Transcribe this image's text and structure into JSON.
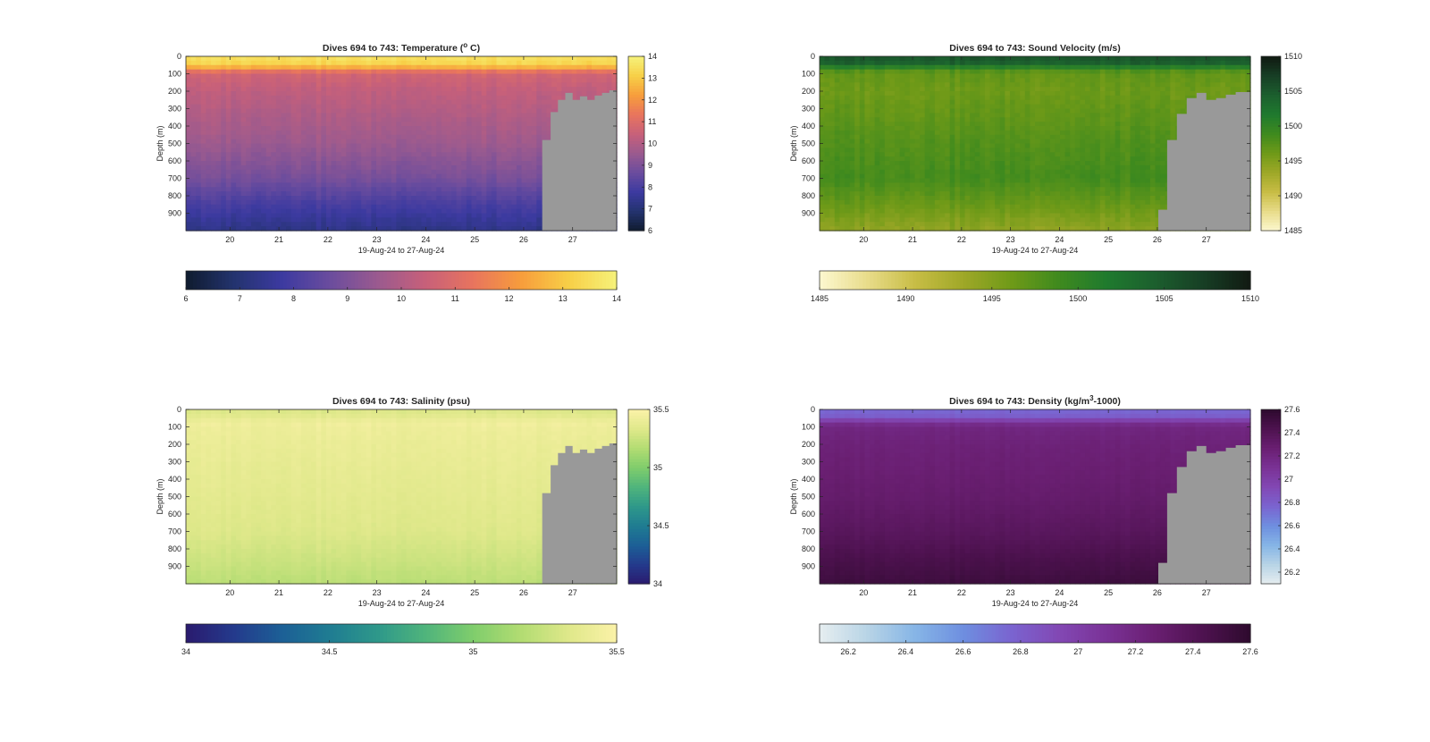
{
  "figure": {
    "background": "#ffffff",
    "bathymetry_color": "#999999"
  },
  "chart_data": [
    {
      "type": "heatmap",
      "title": "Dives 694 to 743: Temperature (° C)",
      "title_parts": {
        "prefix": "Dives 694 to 743: Temperature (",
        "sup": "o",
        "suffix": " C)"
      },
      "xlabel": "19-Aug-24 to 27-Aug-24",
      "ylabel": "Depth (m)",
      "x_ticks": [
        "20",
        "21",
        "22",
        "23",
        "24",
        "25",
        "26",
        "27"
      ],
      "x_range": [
        19.1,
        27.9
      ],
      "y_ticks": [
        "0",
        "100",
        "200",
        "300",
        "400",
        "500",
        "600",
        "700",
        "800",
        "900"
      ],
      "y_range": [
        0,
        1000
      ],
      "y_reversed": true,
      "colorbar_ticks": [
        "6",
        "7",
        "8",
        "9",
        "10",
        "11",
        "12",
        "13",
        "14"
      ],
      "clim": [
        6,
        14
      ],
      "colormap": [
        "#0f1b2e",
        "#23336e",
        "#3c3aa0",
        "#6a4c9e",
        "#9a5a8f",
        "#c7607a",
        "#e8745e",
        "#f79d3c",
        "#f7cf47",
        "#f6f27a"
      ],
      "profile": {
        "depth": [
          0,
          40,
          60,
          80,
          100,
          200,
          500,
          700,
          850,
          1000
        ],
        "value": [
          13.6,
          13.3,
          12.7,
          11.6,
          10.7,
          10.3,
          9.6,
          8.9,
          8.0,
          7.3
        ],
        "variation": 0.35
      },
      "bottom_depth": [
        {
          "day": 26.2,
          "depth": 1000
        },
        {
          "day": 26.38,
          "depth": 480
        },
        {
          "day": 26.55,
          "depth": 320
        },
        {
          "day": 26.7,
          "depth": 250
        },
        {
          "day": 26.85,
          "depth": 210
        },
        {
          "day": 27.0,
          "depth": 250
        },
        {
          "day": 27.15,
          "depth": 230
        },
        {
          "day": 27.3,
          "depth": 250
        },
        {
          "day": 27.45,
          "depth": 225
        },
        {
          "day": 27.6,
          "depth": 210
        },
        {
          "day": 27.75,
          "depth": 195
        },
        {
          "day": 27.9,
          "depth": 190
        }
      ]
    },
    {
      "type": "heatmap",
      "title": "Dives 694 to 743: Sound Velocity (m/s)",
      "title_parts": {
        "prefix": "Dives 694 to 743: Sound Velocity (m/s)",
        "sup": "",
        "suffix": ""
      },
      "xlabel": "19-Aug-24 to 27-Aug-24",
      "ylabel": "Depth (m)",
      "x_ticks": [
        "20",
        "21",
        "22",
        "23",
        "24",
        "25",
        "26",
        "27"
      ],
      "x_range": [
        19.1,
        27.9
      ],
      "y_ticks": [
        "0",
        "100",
        "200",
        "300",
        "400",
        "500",
        "600",
        "700",
        "800",
        "900"
      ],
      "y_range": [
        0,
        1000
      ],
      "y_reversed": true,
      "colorbar_ticks": [
        "1485",
        "1490",
        "1495",
        "1500",
        "1505",
        "1510"
      ],
      "clim": [
        1485,
        1510
      ],
      "colormap": [
        "#fdf8d0",
        "#e8dc8a",
        "#c8bd45",
        "#9fa828",
        "#6f9a18",
        "#3f8a1e",
        "#1f7a2e",
        "#1c5f2e",
        "#173f25",
        "#111a12"
      ],
      "profile": {
        "depth": [
          0,
          40,
          60,
          80,
          100,
          200,
          500,
          700,
          850,
          1000
        ],
        "value": [
          1505.5,
          1504.2,
          1501.2,
          1498.0,
          1496.8,
          1496.2,
          1497.8,
          1498.6,
          1496.5,
          1494.2
        ],
        "variation": 1.4
      },
      "bottom_depth": [
        {
          "day": 25.9,
          "depth": 1000
        },
        {
          "day": 26.02,
          "depth": 880
        },
        {
          "day": 26.2,
          "depth": 480
        },
        {
          "day": 26.4,
          "depth": 330
        },
        {
          "day": 26.6,
          "depth": 240
        },
        {
          "day": 26.8,
          "depth": 210
        },
        {
          "day": 27.0,
          "depth": 250
        },
        {
          "day": 27.2,
          "depth": 240
        },
        {
          "day": 27.4,
          "depth": 220
        },
        {
          "day": 27.6,
          "depth": 205
        },
        {
          "day": 27.9,
          "depth": 195
        }
      ]
    },
    {
      "type": "heatmap",
      "title": "Dives 694 to 743: Salinity (psu)",
      "title_parts": {
        "prefix": "Dives 694 to 743: Salinity (psu)",
        "sup": "",
        "suffix": ""
      },
      "xlabel": "19-Aug-24 to 27-Aug-24",
      "ylabel": "Depth (m)",
      "x_ticks": [
        "20",
        "21",
        "22",
        "23",
        "24",
        "25",
        "26",
        "27"
      ],
      "x_range": [
        19.1,
        27.9
      ],
      "y_ticks": [
        "0",
        "100",
        "200",
        "300",
        "400",
        "500",
        "600",
        "700",
        "800",
        "900"
      ],
      "y_range": [
        0,
        1000
      ],
      "y_reversed": true,
      "colorbar_ticks": [
        "34",
        "34.5",
        "35",
        "35.5"
      ],
      "clim": [
        34,
        35.5
      ],
      "colormap": [
        "#2a1a6e",
        "#243a8c",
        "#1c5f96",
        "#1f7c92",
        "#2e988a",
        "#4fb47c",
        "#7fcd6c",
        "#b2dc72",
        "#dfe88a",
        "#fbf2a8"
      ],
      "profile": {
        "depth": [
          0,
          40,
          80,
          100,
          200,
          500,
          700,
          850,
          1000
        ],
        "value": [
          35.32,
          35.36,
          35.44,
          35.42,
          35.4,
          35.36,
          35.33,
          35.27,
          35.2
        ],
        "variation": 0.04
      },
      "bottom_depth": [
        {
          "day": 26.2,
          "depth": 1000
        },
        {
          "day": 26.38,
          "depth": 480
        },
        {
          "day": 26.55,
          "depth": 320
        },
        {
          "day": 26.7,
          "depth": 250
        },
        {
          "day": 26.85,
          "depth": 210
        },
        {
          "day": 27.0,
          "depth": 250
        },
        {
          "day": 27.15,
          "depth": 230
        },
        {
          "day": 27.3,
          "depth": 250
        },
        {
          "day": 27.45,
          "depth": 225
        },
        {
          "day": 27.6,
          "depth": 210
        },
        {
          "day": 27.75,
          "depth": 195
        },
        {
          "day": 27.9,
          "depth": 190
        }
      ]
    },
    {
      "type": "heatmap",
      "title": "Dives 694 to 743: Density (kg/m3-1000)",
      "title_parts": {
        "prefix": "Dives 694 to 743: Density (kg/m",
        "sup": "3",
        "suffix": "-1000)"
      },
      "xlabel": "19-Aug-24 to 27-Aug-24",
      "ylabel": "Depth (m)",
      "x_ticks": [
        "20",
        "21",
        "22",
        "23",
        "24",
        "25",
        "26",
        "27"
      ],
      "x_range": [
        19.1,
        27.9
      ],
      "y_ticks": [
        "0",
        "100",
        "200",
        "300",
        "400",
        "500",
        "600",
        "700",
        "800",
        "900"
      ],
      "y_range": [
        0,
        1000
      ],
      "y_reversed": true,
      "colorbar_ticks": [
        "26.2",
        "26.4",
        "26.6",
        "26.8",
        "27",
        "27.2",
        "27.4",
        "27.6"
      ],
      "clim": [
        26.1,
        27.6
      ],
      "colormap": [
        "#e6eef0",
        "#b8d4e6",
        "#86b5e6",
        "#6e8fe0",
        "#7a64d0",
        "#8248b4",
        "#7a3296",
        "#6a1f72",
        "#4e1250",
        "#2e0a2e"
      ],
      "profile": {
        "depth": [
          0,
          40,
          60,
          80,
          100,
          200,
          500,
          700,
          850,
          1000
        ],
        "value": [
          26.75,
          26.8,
          26.95,
          27.12,
          27.2,
          27.24,
          27.3,
          27.37,
          27.45,
          27.52
        ],
        "variation": 0.03
      },
      "bottom_depth": [
        {
          "day": 25.9,
          "depth": 1000
        },
        {
          "day": 26.02,
          "depth": 880
        },
        {
          "day": 26.2,
          "depth": 480
        },
        {
          "day": 26.4,
          "depth": 330
        },
        {
          "day": 26.6,
          "depth": 240
        },
        {
          "day": 26.8,
          "depth": 210
        },
        {
          "day": 27.0,
          "depth": 250
        },
        {
          "day": 27.2,
          "depth": 240
        },
        {
          "day": 27.4,
          "depth": 220
        },
        {
          "day": 27.6,
          "depth": 205
        },
        {
          "day": 27.9,
          "depth": 195
        }
      ]
    }
  ]
}
